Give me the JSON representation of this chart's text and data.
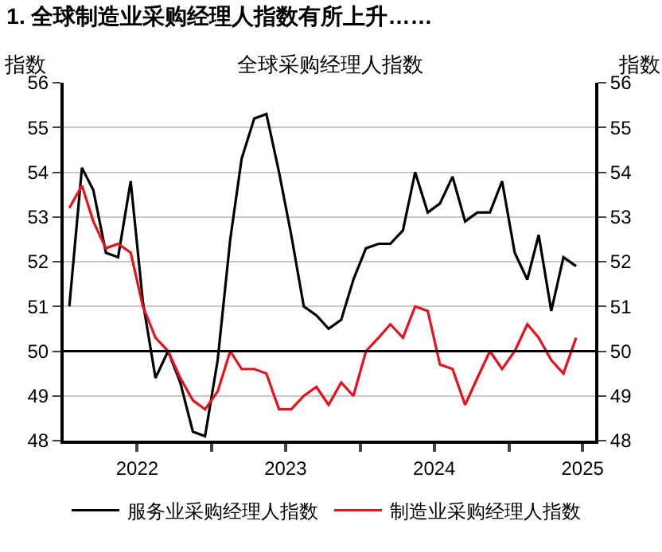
{
  "chart_data": {
    "type": "line",
    "title": "1. 全球制造业采购经理人指数有所上升……",
    "subtitle": "全球采购经理人指数",
    "ylabel": "指数",
    "y2label": "指数",
    "x": [
      "2022-01-15",
      "2022-02-15",
      "2022-03-15",
      "2022-04-15",
      "2022-05-15",
      "2022-06-15",
      "2022-07-15",
      "2022-08-15",
      "2022-09-15",
      "2022-10-15",
      "2022-11-15",
      "2022-12-15",
      "2023-01-15",
      "2023-02-15",
      "2023-03-15",
      "2023-04-15",
      "2023-05-15",
      "2023-06-15",
      "2023-07-15",
      "2023-08-15",
      "2023-09-15",
      "2023-10-15",
      "2023-11-15",
      "2023-12-15",
      "2024-01-15",
      "2024-02-15",
      "2024-03-15",
      "2024-04-15",
      "2024-05-15",
      "2024-06-15",
      "2024-07-15",
      "2024-08-15",
      "2024-09-15",
      "2024-10-15",
      "2024-11-15",
      "2024-12-15",
      "2025-01-15",
      "2025-02-15",
      "2025-03-15",
      "2025-04-15",
      "2025-05-15",
      "2025-06-15"
    ],
    "series": [
      {
        "name": "服务业采购经理人指数",
        "color": "#000000",
        "values": [
          51.0,
          54.1,
          53.6,
          52.2,
          52.1,
          53.8,
          51.1,
          49.4,
          50.0,
          49.3,
          48.2,
          48.1,
          49.8,
          52.5,
          54.3,
          55.2,
          55.3,
          54.0,
          52.6,
          51.0,
          50.8,
          50.5,
          50.7,
          51.6,
          52.3,
          52.4,
          52.4,
          52.7,
          54.0,
          53.1,
          53.3,
          53.9,
          52.9,
          53.1,
          53.1,
          53.8,
          52.2,
          51.6,
          52.6,
          50.9,
          52.1,
          51.9
        ]
      },
      {
        "name": "制造业采购经理人指数",
        "color": "#e8101a",
        "values": [
          53.2,
          53.7,
          52.9,
          52.3,
          52.4,
          52.2,
          51.0,
          50.3,
          50.0,
          49.4,
          48.9,
          48.7,
          49.1,
          50.0,
          49.6,
          49.6,
          49.5,
          48.7,
          48.7,
          49.0,
          49.2,
          48.8,
          49.3,
          49.0,
          50.0,
          50.3,
          50.6,
          50.3,
          51.0,
          50.9,
          49.7,
          49.6,
          48.8,
          49.4,
          50.0,
          49.6,
          50.0,
          50.6,
          50.3,
          49.8,
          49.5,
          50.3
        ]
      }
    ],
    "xlim": [
      "2022-01-01",
      "2025-08-01"
    ],
    "xticks": [
      {
        "value": "2022-07-01",
        "label": "2022"
      },
      {
        "value": "2023-01-01",
        "label": null
      },
      {
        "value": "2023-07-01",
        "label": "2023"
      },
      {
        "value": "2024-01-01",
        "label": null
      },
      {
        "value": "2024-07-01",
        "label": "2024"
      },
      {
        "value": "2025-01-01",
        "label": null
      },
      {
        "value": "2025-07-01",
        "label": "2025"
      }
    ],
    "ylim": [
      48,
      56
    ],
    "yticks": [
      48,
      49,
      50,
      51,
      52,
      53,
      54,
      55,
      56
    ],
    "y2lim": [
      48,
      56
    ],
    "y2ticks": [
      48,
      49,
      50,
      51,
      52,
      53,
      54,
      55,
      56
    ],
    "ref_lines": [
      {
        "axis": "y",
        "value": 50,
        "color": "#000000"
      }
    ],
    "grid": "y",
    "legend": "bottom",
    "marker": "none",
    "line_style": "solid"
  }
}
